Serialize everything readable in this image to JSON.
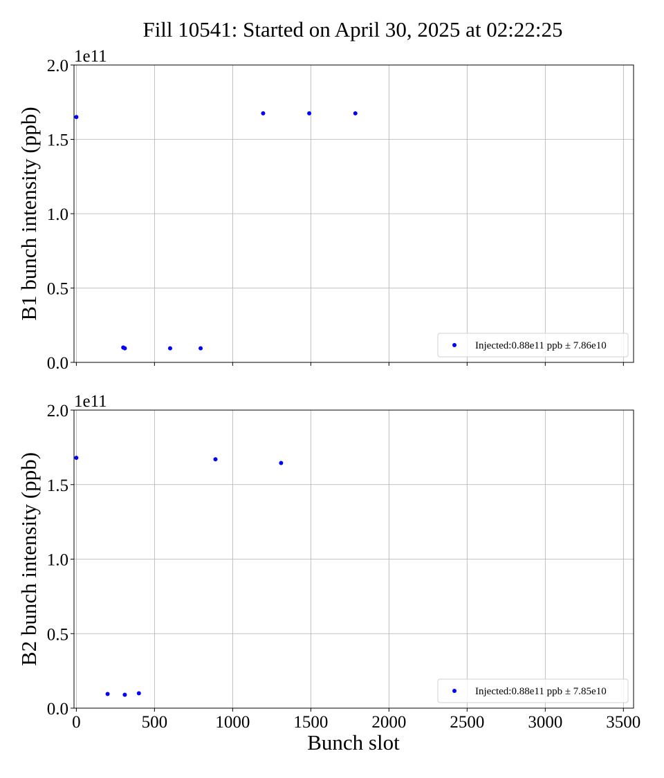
{
  "chart_data": {
    "title": "Fill 10541: Started on April 30, 2025 at 02:22:25",
    "xlabel": "Bunch slot",
    "xlim": [
      -15,
      3565
    ],
    "xticks": [
      0,
      500,
      1000,
      1500,
      2000,
      2500,
      3000,
      3500
    ],
    "xtick_labels": [
      "0",
      "500",
      "1000",
      "1500",
      "2000",
      "2500",
      "3000",
      "3500"
    ],
    "grid": true,
    "marker_color": "#0000ff",
    "panels": [
      {
        "type": "scatter",
        "ylabel": "B1 bunch intensity (ppb)",
        "ylim": [
          0,
          2.0
        ],
        "yticks": [
          0.0,
          0.5,
          1.0,
          1.5,
          2.0
        ],
        "ytick_labels": [
          "0.0",
          "0.5",
          "1.0",
          "1.5",
          "2.0"
        ],
        "offset_text": "1e11",
        "show_xtick_labels": false,
        "legend": {
          "label": "Injected:0.88e11 ppb ± 7.86e10",
          "loc": "lower right"
        },
        "series": [
          {
            "name": "Injected:0.88e11 ppb ± 7.86e10",
            "x": [
              0,
              300,
              310,
              600,
              795,
              1195,
              1490,
              1785
            ],
            "y": [
              1.65,
              0.1,
              0.095,
              0.095,
              0.095,
              1.675,
              1.675,
              1.675
            ]
          }
        ]
      },
      {
        "type": "scatter",
        "ylabel": "B2 bunch intensity (ppb)",
        "ylim": [
          0,
          2.0
        ],
        "yticks": [
          0.0,
          0.5,
          1.0,
          1.5,
          2.0
        ],
        "ytick_labels": [
          "0.0",
          "0.5",
          "1.0",
          "1.5",
          "2.0"
        ],
        "offset_text": "1e11",
        "show_xtick_labels": true,
        "legend": {
          "label": "Injected:0.88e11 ppb ± 7.85e10",
          "loc": "lower right"
        },
        "series": [
          {
            "name": "Injected:0.88e11 ppb ± 7.85e10",
            "x": [
              0,
              200,
              310,
              400,
              890,
              1310
            ],
            "y": [
              1.68,
              0.095,
              0.09,
              0.1,
              1.67,
              1.645
            ]
          }
        ]
      }
    ]
  }
}
